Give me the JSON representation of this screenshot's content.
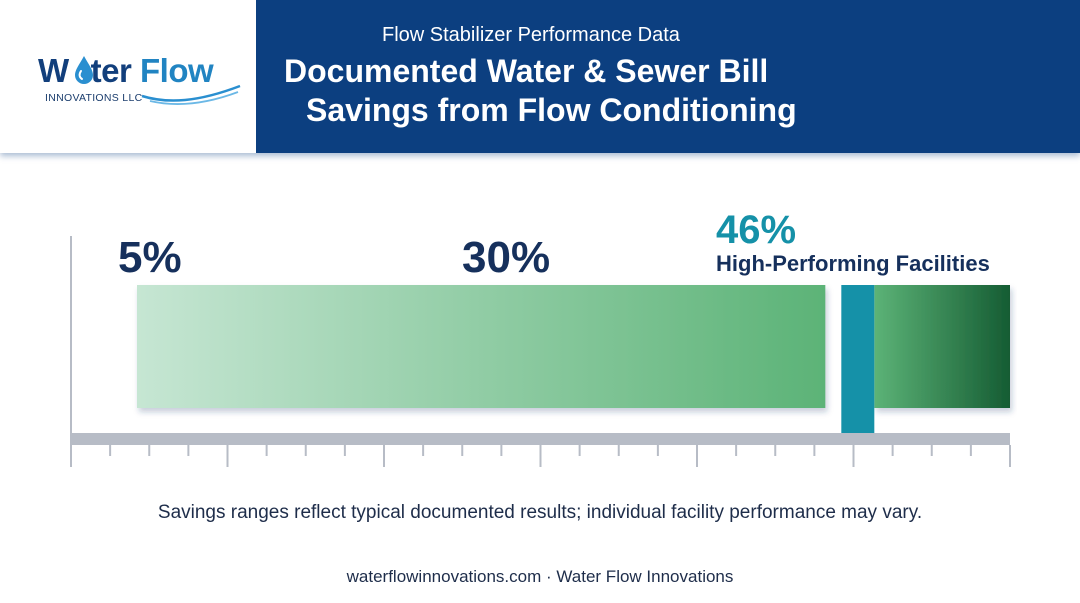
{
  "logo": {
    "name_part1": "W",
    "name_part2": "ter",
    "name_part3": "Flow",
    "tagline": "INNOVATIONS LLC"
  },
  "header": {
    "subtitle": "Flow Stabilizer Performance Data",
    "title_line1": "Documented Water & Sewer Bill",
    "title_line2": "Savings from Flow Conditioning"
  },
  "chart_data": {
    "type": "bar",
    "orientation": "horizontal-range",
    "values": [
      5,
      30,
      46
    ],
    "labels": [
      "5%",
      "30%",
      "46%"
    ],
    "annotation": "High-Performing Facilities",
    "colors": {
      "range_start": "#c6e6d3",
      "range_mid": "#5cb377",
      "range_end": "#155c33",
      "marker": "#1591a8",
      "axis": "#b7bcc6",
      "label": "#16305c",
      "marker_label": "#1591a8"
    }
  },
  "note": "Savings ranges reflect typical documented results; individual facility performance may vary.",
  "footer": "waterflowinnovations.com · Water Flow Innovations"
}
